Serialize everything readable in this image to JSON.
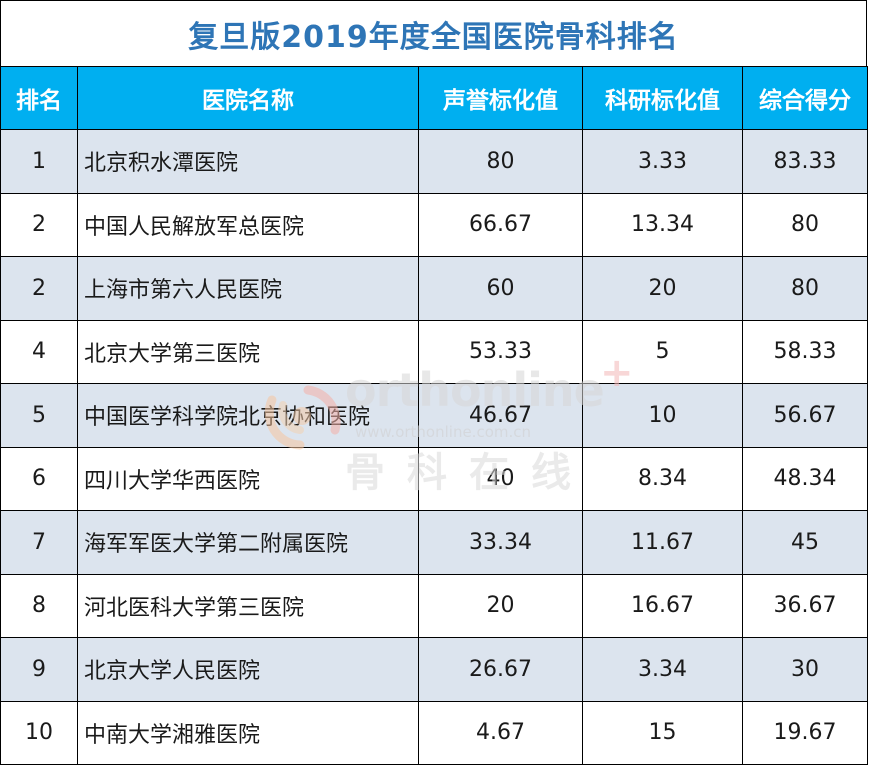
{
  "title": "复旦版2019年度全国医院骨科排名",
  "headers": {
    "rank": "排名",
    "hospital": "医院名称",
    "reputation": "声誉标化值",
    "research": "科研标化值",
    "total": "综合得分"
  },
  "rows": [
    {
      "rank": "1",
      "hospital": "北京积水潭医院",
      "reputation": "80",
      "research": "3.33",
      "total": "83.33"
    },
    {
      "rank": "2",
      "hospital": "中国人民解放军总医院",
      "reputation": "66.67",
      "research": "13.34",
      "total": "80"
    },
    {
      "rank": "2",
      "hospital": "上海市第六人民医院",
      "reputation": "60",
      "research": "20",
      "total": "80"
    },
    {
      "rank": "4",
      "hospital": "北京大学第三医院",
      "reputation": "53.33",
      "research": "5",
      "total": "58.33"
    },
    {
      "rank": "5",
      "hospital": "中国医学科学院北京协和医院",
      "reputation": "46.67",
      "research": "10",
      "total": "56.67"
    },
    {
      "rank": "6",
      "hospital": "四川大学华西医院",
      "reputation": "40",
      "research": "8.34",
      "total": "48.34"
    },
    {
      "rank": "7",
      "hospital": "海军军医大学第二附属医院",
      "reputation": "33.34",
      "research": "11.67",
      "total": "45"
    },
    {
      "rank": "8",
      "hospital": "河北医科大学第三医院",
      "reputation": "20",
      "research": "16.67",
      "total": "36.67"
    },
    {
      "rank": "9",
      "hospital": "北京大学人民医院",
      "reputation": "26.67",
      "research": "3.34",
      "total": "30"
    },
    {
      "rank": "10",
      "hospital": "中南大学湘雅医院",
      "reputation": "4.67",
      "research": "15",
      "total": "19.67"
    }
  ],
  "watermark": {
    "logo": "orthonline",
    "url": "www.orthonline.com.cn",
    "cn": "骨科在线",
    "plus": "+"
  },
  "colors": {
    "title": "#2e75b6",
    "header_bg": "#00aff0",
    "header_text": "#ffffff",
    "row_shade": "#dce4ee",
    "row_plain": "#ffffff"
  }
}
